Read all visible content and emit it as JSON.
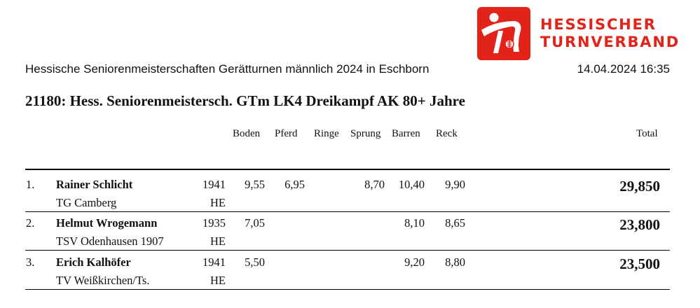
{
  "logo": {
    "line1": "HESSISCHER",
    "line2": "TURNVERBAND",
    "brand_color": "#e2231a",
    "icon": "gymnast-logo-icon"
  },
  "header": {
    "event": "Hessische Seniorenmeisterschaften Gerätturnen männlich 2024 in Eschborn",
    "datetime": "14.04.2024 16:35",
    "competition_title": "21180: Hess. Seniorenmeistersch. GTm LK4 Dreikampf AK 80+ Jahre"
  },
  "columns": {
    "boden": "Boden",
    "pferd": "Pferd",
    "ringe": "Ringe",
    "sprung": "Sprung",
    "barren": "Barren",
    "reck": "Reck",
    "total": "Total"
  },
  "results": [
    {
      "rank": "1.",
      "name": "Rainer Schlicht",
      "club": "TG Camberg",
      "year": "1941",
      "state": "HE",
      "boden": "9,55",
      "pferd": "6,95",
      "ringe": "",
      "sprung": "8,70",
      "barren": "10,40",
      "reck": "9,90",
      "total": "29,850"
    },
    {
      "rank": "2.",
      "name": "Helmut Wrogemann",
      "club": "TSV Odenhausen 1907",
      "year": "1935",
      "state": "HE",
      "boden": "7,05",
      "pferd": "",
      "ringe": "",
      "sprung": "",
      "barren": "8,10",
      "reck": "8,65",
      "total": "23,800"
    },
    {
      "rank": "3.",
      "name": "Erich Kalhöfer",
      "club": "TV Weißkirchen/Ts.",
      "year": "1941",
      "state": "HE",
      "boden": "5,50",
      "pferd": "",
      "ringe": "",
      "sprung": "",
      "barren": "9,20",
      "reck": "8,80",
      "total": "23,500"
    }
  ]
}
